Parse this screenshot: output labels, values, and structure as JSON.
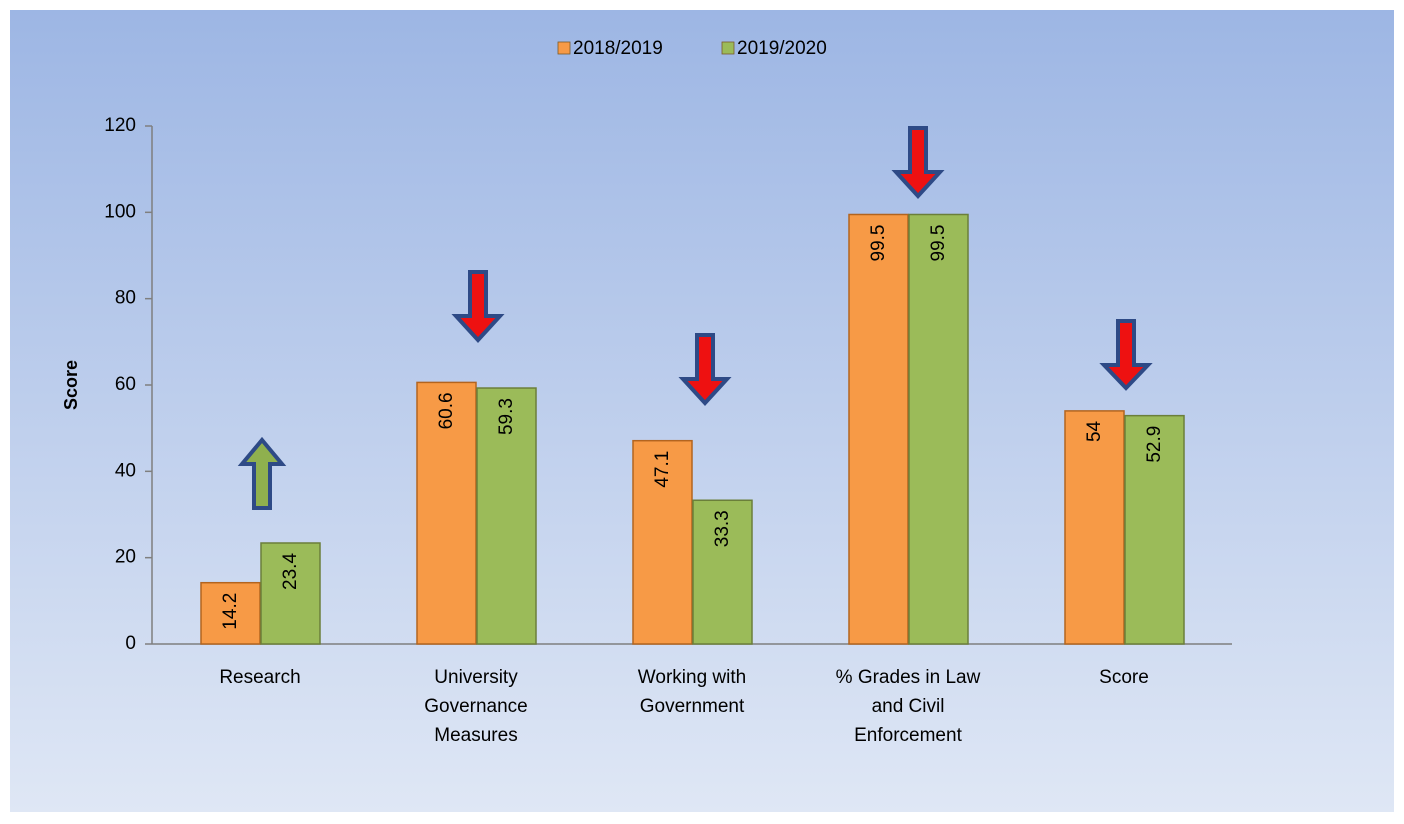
{
  "chart_data": {
    "type": "bar",
    "categories": [
      "Research",
      "University Governance Measures",
      "Working with Government",
      "% Grades in Law and Civil Enforcement",
      "Score"
    ],
    "series": [
      {
        "name": "2018/2019",
        "color": "#f79a46",
        "values": [
          14.2,
          60.6,
          47.1,
          99.5,
          54
        ]
      },
      {
        "name": "2019/2020",
        "color": "#9bbb59",
        "values": [
          23.4,
          59.3,
          33.3,
          99.5,
          52.9
        ]
      }
    ],
    "y_label": "Score",
    "ylim": [
      0,
      120
    ],
    "yticks": [
      0,
      20,
      40,
      60,
      80,
      100,
      120
    ],
    "legend": "top"
  }
}
